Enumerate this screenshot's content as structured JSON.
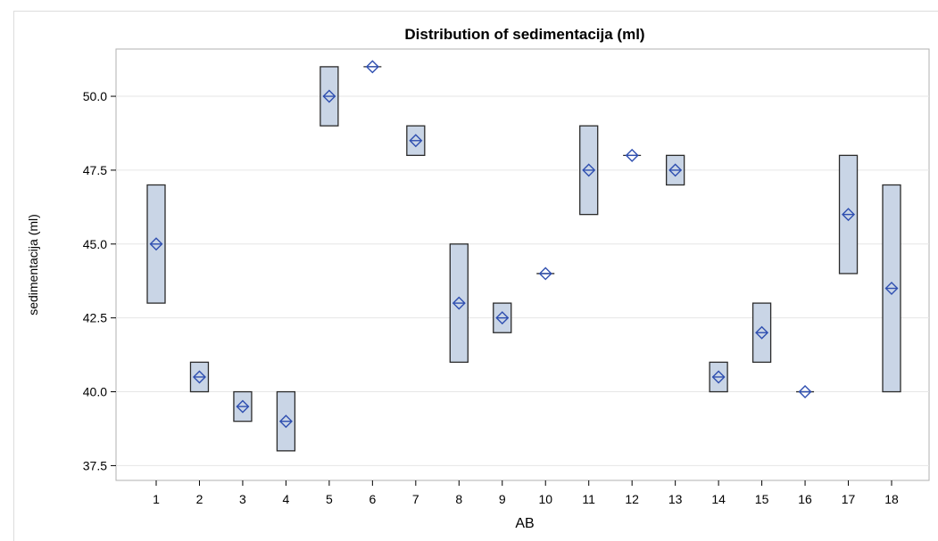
{
  "chart_data": {
    "type": "box",
    "title": "Distribution of sedimentacija (ml)",
    "xlabel": "AB",
    "ylabel": "sedimentacija (ml)",
    "ylim": [
      37.0,
      51.6
    ],
    "yticks": [
      "37.5",
      "40.0",
      "42.5",
      "45.0",
      "47.5",
      "50.0"
    ],
    "grid": true,
    "categories": [
      "1",
      "2",
      "3",
      "4",
      "5",
      "6",
      "7",
      "8",
      "9",
      "10",
      "11",
      "12",
      "13",
      "14",
      "15",
      "16",
      "17",
      "18"
    ],
    "boxes": [
      {
        "min": 43,
        "max": 47,
        "mean": 45
      },
      {
        "min": 40,
        "max": 41,
        "mean": 40.5
      },
      {
        "min": 39,
        "max": 40,
        "mean": 39.5
      },
      {
        "min": 38,
        "max": 40,
        "mean": 39
      },
      {
        "min": 49,
        "max": 51,
        "mean": 50
      },
      {
        "min": 51,
        "max": 51,
        "mean": 51
      },
      {
        "min": 48,
        "max": 49,
        "mean": 48.5
      },
      {
        "min": 41,
        "max": 45,
        "mean": 43
      },
      {
        "min": 42,
        "max": 43,
        "mean": 42.5
      },
      {
        "min": 44,
        "max": 44,
        "mean": 44
      },
      {
        "min": 46,
        "max": 49,
        "mean": 47.5
      },
      {
        "min": 48,
        "max": 48,
        "mean": 48
      },
      {
        "min": 47,
        "max": 48,
        "mean": 47.5
      },
      {
        "min": 40,
        "max": 41,
        "mean": 40.5
      },
      {
        "min": 41,
        "max": 43,
        "mean": 42
      },
      {
        "min": 40,
        "max": 40,
        "mean": 40
      },
      {
        "min": 44,
        "max": 48,
        "mean": 46
      },
      {
        "min": 40,
        "max": 47,
        "mean": 43.5
      }
    ],
    "colors": {
      "box_fill": "#c9d5e6",
      "box_stroke": "#2b2b2b",
      "mean_marker": "#2f4fb0",
      "grid": "#e6e6e6",
      "frame": "#b0b0b0"
    }
  }
}
